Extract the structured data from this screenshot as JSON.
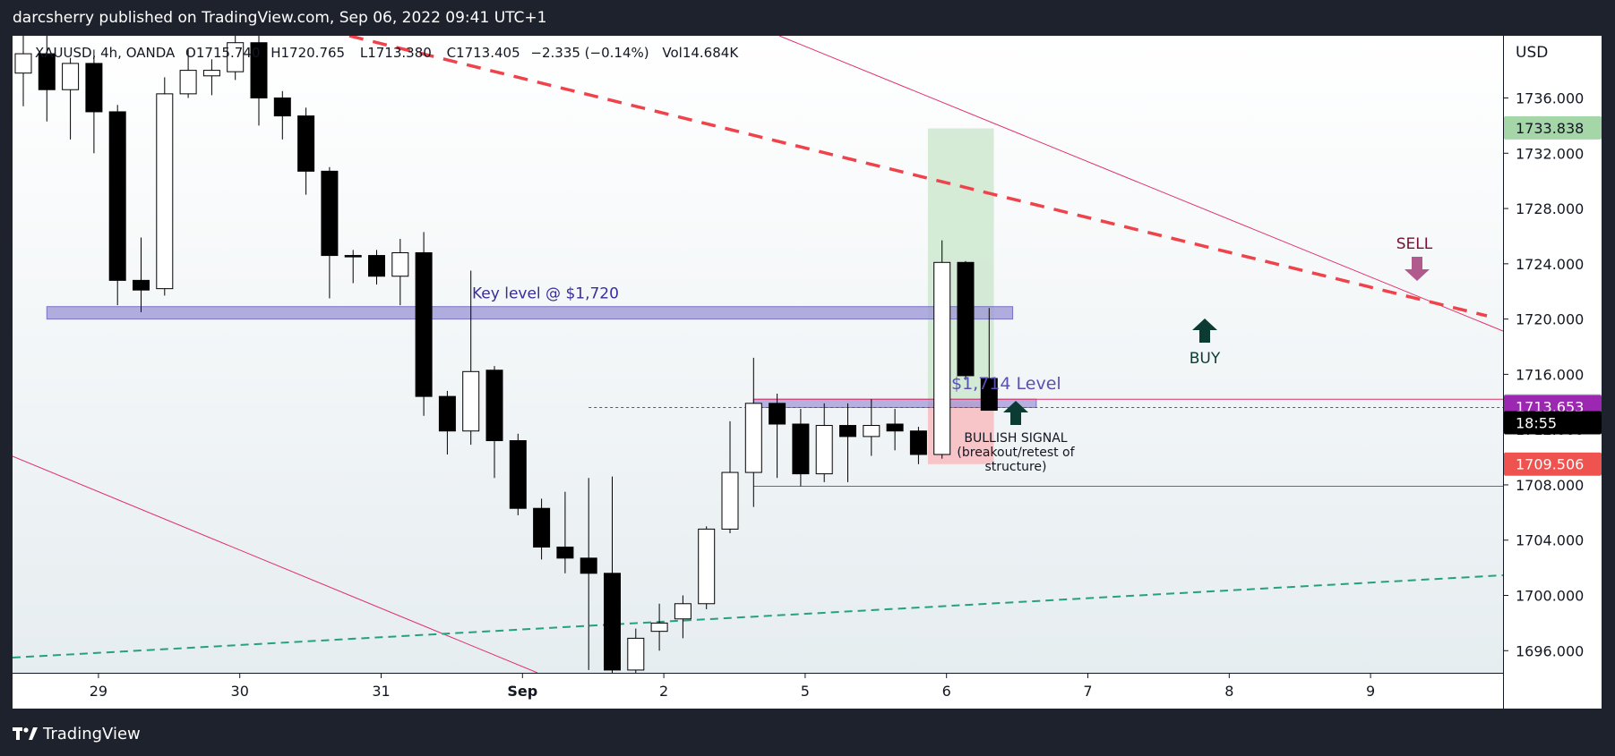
{
  "header": {
    "publisher_text": "darcsherry published on TradingView.com, Sep 06, 2022 09:41 UTC+1"
  },
  "footer": {
    "brand": "TradingView"
  },
  "legend": {
    "symbol": "XAUUSD, 4h, OANDA",
    "open": "O1715.740",
    "high": "H1720.765",
    "low": "L1713.380",
    "close": "C1713.405",
    "change": "−2.335 (−0.14%)",
    "volume": "Vol14.684K"
  },
  "colors": {
    "bull_candle": "#ffffff",
    "bear_candle": "#000000",
    "key_level_zone": "#9b93d6",
    "trendline": "#e0306a",
    "dashed_resistance": "#f0424a",
    "dashed_support": "#26a17f",
    "buy_arrow": "#0c3b33",
    "sell_arrow": "#b05a8d",
    "label_text": "#3b2d9a"
  },
  "chart_data": {
    "type": "candlestick",
    "currency": "USD",
    "y_axis": {
      "ticks": [
        "1736.000",
        "1732.000",
        "1728.000",
        "1724.000",
        "1720.000",
        "1716.000",
        "1712.000",
        "1708.000",
        "1704.000",
        "1700.000",
        "1696.000"
      ],
      "range": [
        1694.4,
        1740.5
      ]
    },
    "x_axis": {
      "ticks": [
        {
          "label": "29",
          "bar": 3
        },
        {
          "label": "30",
          "bar": 9
        },
        {
          "label": "31",
          "bar": 15
        },
        {
          "label": "Sep",
          "bar": 21
        },
        {
          "label": "2",
          "bar": 27
        },
        {
          "label": "5",
          "bar": 33
        },
        {
          "label": "6",
          "bar": 39
        },
        {
          "label": "7",
          "bar": 45
        },
        {
          "label": "8",
          "bar": 51
        },
        {
          "label": "9",
          "bar": 57
        }
      ]
    },
    "price_labels": [
      {
        "value": 1733.838,
        "text": "1733.838",
        "bg": "#a5d6a7",
        "fg": "#131722"
      },
      {
        "value": 1713.722,
        "text": "1713.722",
        "bg": "#b2b5be",
        "fg": "#131722"
      },
      {
        "value": 1713.653,
        "text": "1713.653",
        "bg": "#9c27b0",
        "fg": "#ffffff"
      },
      {
        "value": 1712.5,
        "text": "18:55",
        "bg": "#000000",
        "fg": "#ffffff"
      },
      {
        "value": 1709.506,
        "text": "1709.506",
        "bg": "#ef5350",
        "fg": "#ffffff"
      }
    ],
    "candles": [
      {
        "o": 1737.8,
        "h": 1740.5,
        "l": 1735.4,
        "c": 1739.2
      },
      {
        "o": 1739.2,
        "h": 1740.5,
        "l": 1734.3,
        "c": 1736.6
      },
      {
        "o": 1736.6,
        "h": 1738.9,
        "l": 1733.0,
        "c": 1738.5
      },
      {
        "o": 1738.5,
        "h": 1739.5,
        "l": 1732.0,
        "c": 1735.0
      },
      {
        "o": 1735.0,
        "h": 1735.5,
        "l": 1721.0,
        "c": 1722.8
      },
      {
        "o": 1722.8,
        "h": 1725.9,
        "l": 1720.5,
        "c": 1722.1
      },
      {
        "o": 1722.2,
        "h": 1737.5,
        "l": 1721.7,
        "c": 1736.3
      },
      {
        "o": 1736.3,
        "h": 1739.5,
        "l": 1736.0,
        "c": 1738.0
      },
      {
        "o": 1737.6,
        "h": 1738.8,
        "l": 1736.2,
        "c": 1738.0
      },
      {
        "o": 1737.9,
        "h": 1740.5,
        "l": 1737.3,
        "c": 1740.0
      },
      {
        "o": 1740.0,
        "h": 1740.5,
        "l": 1734.0,
        "c": 1736.0
      },
      {
        "o": 1736.0,
        "h": 1736.5,
        "l": 1733.0,
        "c": 1734.7
      },
      {
        "o": 1734.7,
        "h": 1735.3,
        "l": 1729.0,
        "c": 1730.7
      },
      {
        "o": 1730.7,
        "h": 1731.0,
        "l": 1721.5,
        "c": 1724.6
      },
      {
        "o": 1724.6,
        "h": 1725.0,
        "l": 1722.6,
        "c": 1724.5
      },
      {
        "o": 1724.6,
        "h": 1725.0,
        "l": 1722.5,
        "c": 1723.1
      },
      {
        "o": 1723.1,
        "h": 1725.8,
        "l": 1721.0,
        "c": 1724.8
      },
      {
        "o": 1724.8,
        "h": 1726.3,
        "l": 1713.0,
        "c": 1714.4
      },
      {
        "o": 1714.4,
        "h": 1714.8,
        "l": 1710.2,
        "c": 1711.9
      },
      {
        "o": 1711.9,
        "h": 1723.5,
        "l": 1710.9,
        "c": 1716.2
      },
      {
        "o": 1716.3,
        "h": 1716.6,
        "l": 1708.5,
        "c": 1711.2
      },
      {
        "o": 1711.2,
        "h": 1711.7,
        "l": 1705.8,
        "c": 1706.3
      },
      {
        "o": 1706.3,
        "h": 1707.0,
        "l": 1702.6,
        "c": 1703.5
      },
      {
        "o": 1703.5,
        "h": 1707.5,
        "l": 1701.6,
        "c": 1702.7
      },
      {
        "o": 1702.7,
        "h": 1708.5,
        "l": 1694.6,
        "c": 1701.6
      },
      {
        "o": 1701.6,
        "h": 1708.6,
        "l": 1694.4,
        "c": 1694.6
      },
      {
        "o": 1694.6,
        "h": 1697.6,
        "l": 1694.4,
        "c": 1696.9
      },
      {
        "o": 1697.4,
        "h": 1699.4,
        "l": 1696.0,
        "c": 1698.0
      },
      {
        "o": 1698.3,
        "h": 1700.0,
        "l": 1696.9,
        "c": 1699.4
      },
      {
        "o": 1699.4,
        "h": 1705.0,
        "l": 1699.0,
        "c": 1704.8
      },
      {
        "o": 1704.8,
        "h": 1712.6,
        "l": 1704.5,
        "c": 1708.9
      },
      {
        "o": 1708.9,
        "h": 1717.2,
        "l": 1706.4,
        "c": 1713.9
      },
      {
        "o": 1713.9,
        "h": 1714.6,
        "l": 1708.5,
        "c": 1712.4
      },
      {
        "o": 1712.4,
        "h": 1713.5,
        "l": 1707.9,
        "c": 1708.8
      },
      {
        "o": 1708.8,
        "h": 1713.9,
        "l": 1708.2,
        "c": 1712.3
      },
      {
        "o": 1712.3,
        "h": 1713.9,
        "l": 1708.2,
        "c": 1711.5
      },
      {
        "o": 1711.5,
        "h": 1714.2,
        "l": 1710.1,
        "c": 1712.3
      },
      {
        "o": 1712.4,
        "h": 1713.5,
        "l": 1710.5,
        "c": 1711.9
      },
      {
        "o": 1711.9,
        "h": 1712.2,
        "l": 1709.5,
        "c": 1710.2
      },
      {
        "o": 1710.2,
        "h": 1725.7,
        "l": 1709.9,
        "c": 1724.1
      },
      {
        "o": 1724.1,
        "h": 1724.2,
        "l": 1715.6,
        "c": 1715.9
      },
      {
        "o": 1715.7,
        "h": 1720.8,
        "l": 1713.4,
        "c": 1713.4
      }
    ],
    "annotations": {
      "key_level": {
        "label": "Key level @ $1,720",
        "low": 1720.0,
        "high": 1720.9,
        "from_bar": 1,
        "to_bar": 42
      },
      "level_1714": {
        "label": "$1,714 Level",
        "low": 1713.6,
        "high": 1714.2,
        "from_bar": 31,
        "to_bar": 43
      },
      "current_price_line": {
        "value": 1713.6,
        "from_bar": 24
      },
      "support_line": {
        "value": 1707.9,
        "from_bar": 31
      },
      "position_profit": {
        "low": 1714.0,
        "high": 1733.8,
        "from_bar": 38.4,
        "to_bar": 41.2
      },
      "position_loss": {
        "low": 1709.5,
        "high": 1714.0,
        "from_bar": 38.4,
        "to_bar": 41.2
      },
      "sell": {
        "label": "SELL",
        "bar": 57,
        "value": 1724.5
      },
      "buy": {
        "label": "BUY",
        "bar": 49,
        "value": 1717.6
      },
      "bullish_signal": {
        "lines": [
          "BULLISH SIGNAL",
          "(breakout/retest of",
          "structure)"
        ],
        "bar": 41.7,
        "value": 1713.5
      }
    }
  }
}
